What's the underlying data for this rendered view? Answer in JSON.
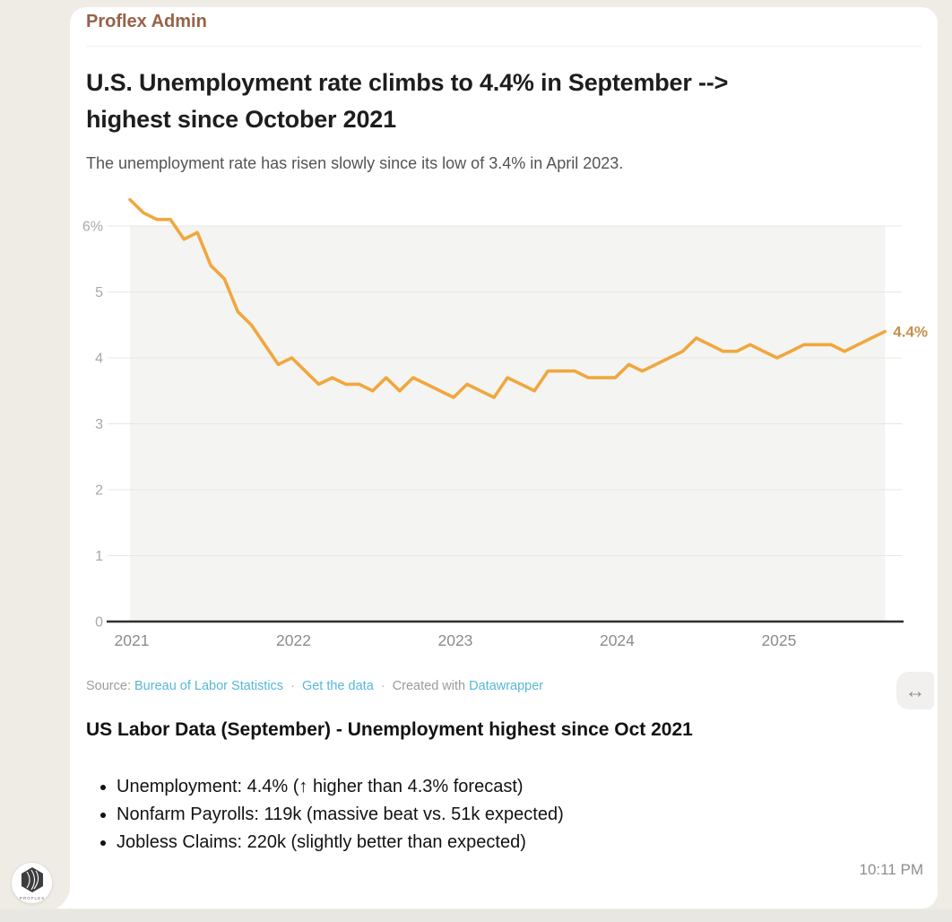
{
  "conversation": {
    "sender": "Proflex Admin",
    "timestamp": "10:11 PM",
    "avatar_label": "PROFLEX"
  },
  "chart": {
    "title_line1": "U.S. Unemployment rate climbs to 4.4% in September -->",
    "title_line2": "highest since October 2021",
    "subtitle": "The unemployment rate has risen slowly since its low of 3.4% in April 2023.",
    "source_prefix": "Source:",
    "source_link": "Bureau of Labor Statistics",
    "separator": "·",
    "get_data_link": "Get the data",
    "created_with": "Created with",
    "tool_link": "Datawrapper",
    "resize_icon": "↔"
  },
  "chart_data": {
    "type": "line",
    "x_start": "2021-01",
    "x_end": "2025-09",
    "frequency": "monthly",
    "values": [
      6.4,
      6.2,
      6.1,
      6.1,
      5.8,
      5.9,
      5.4,
      5.2,
      4.7,
      4.5,
      4.2,
      3.9,
      4.0,
      3.8,
      3.6,
      3.7,
      3.6,
      3.6,
      3.5,
      3.7,
      3.5,
      3.7,
      3.6,
      3.5,
      3.4,
      3.6,
      3.5,
      3.4,
      3.7,
      3.6,
      3.5,
      3.8,
      3.8,
      3.8,
      3.7,
      3.7,
      3.7,
      3.9,
      3.8,
      3.9,
      4.0,
      4.1,
      4.3,
      4.2,
      4.1,
      4.1,
      4.2,
      4.1,
      4.0,
      4.1,
      4.2,
      4.2,
      4.2,
      4.1,
      4.2,
      4.3,
      4.4
    ],
    "end_label": "4.4%",
    "line_color": "#F0A73E",
    "end_label_color": "#C2914D",
    "plot_bg": "#f4f4f2",
    "grid": true,
    "ylim": [
      0,
      6.6
    ],
    "y_ticks": [
      {
        "label": "6%",
        "value": 6
      },
      {
        "label": "5",
        "value": 5
      },
      {
        "label": "4",
        "value": 4
      },
      {
        "label": "3",
        "value": 3
      },
      {
        "label": "2",
        "value": 2
      },
      {
        "label": "1",
        "value": 1
      },
      {
        "label": "0",
        "value": 0
      }
    ],
    "x_ticks": [
      {
        "label": "2021",
        "month_index": 0
      },
      {
        "label": "2022",
        "month_index": 12
      },
      {
        "label": "2023",
        "month_index": 24
      },
      {
        "label": "2024",
        "month_index": 36
      },
      {
        "label": "2025",
        "month_index": 48
      }
    ]
  },
  "message": {
    "headline": "US Labor Data (September) - Unemployment highest since Oct 2021",
    "bullets": [
      "Unemployment: 4.4% (↑ higher than 4.3% forecast)",
      "Nonfarm Payrolls: 119k (massive beat vs. 51k expected)",
      "Jobless Claims: 220k (slightly better than expected)"
    ]
  }
}
